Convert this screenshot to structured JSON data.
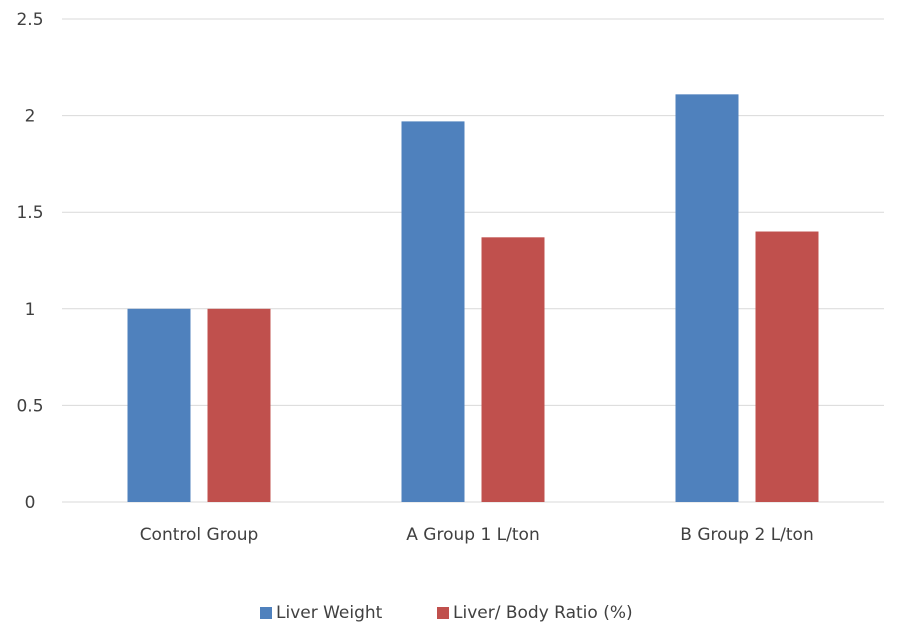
{
  "chart_data": {
    "type": "bar",
    "title": "",
    "xlabel": "",
    "ylabel": "",
    "categories": [
      "Control Group",
      "A Group 1 L/ton",
      "B Group 2 L/ton"
    ],
    "series": [
      {
        "name": "Liver Weight",
        "values": [
          1.0,
          1.97,
          2.11
        ],
        "color": "#4f81bd"
      },
      {
        "name": "Liver/ Body Ratio (%)",
        "values": [
          1.0,
          1.37,
          1.4
        ],
        "color": "#c0504d"
      }
    ],
    "ylim": [
      0,
      2.5
    ],
    "yticks": [
      0,
      0.5,
      1,
      1.5,
      2,
      2.5
    ],
    "ytick_labels": [
      "0",
      "0.5",
      "1",
      "1.5",
      "2",
      "2.5"
    ],
    "grid": true,
    "gridline_color": "#d9d9d9",
    "legend_position": "bottom"
  }
}
